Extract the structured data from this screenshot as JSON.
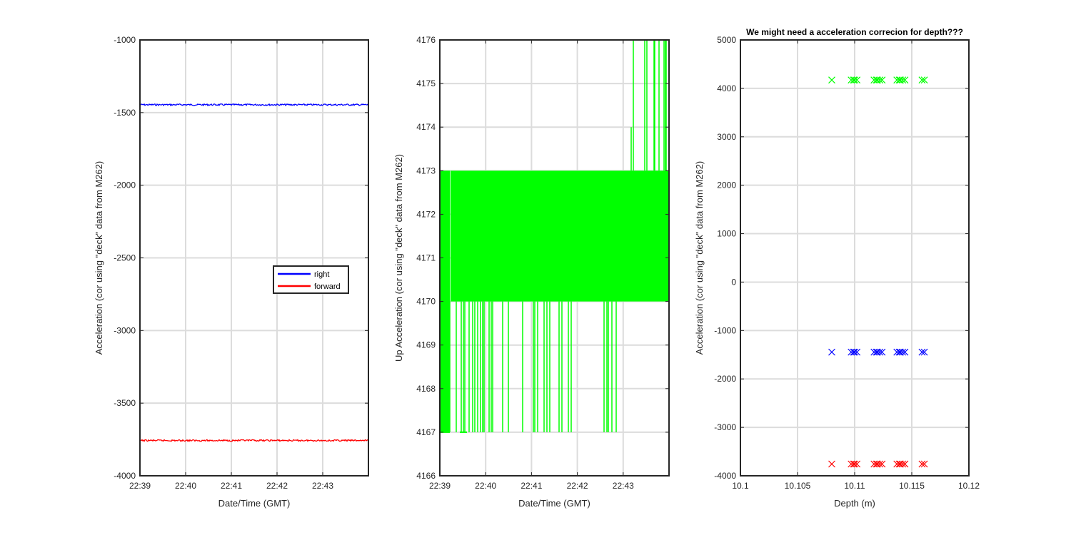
{
  "chart_data": [
    {
      "type": "line",
      "title": "",
      "xlabel": "Date/Time (GMT)",
      "ylabel": "Acceleration (cor using \"deck\" data from M262)",
      "xlim": [
        "22:39",
        "22:44"
      ],
      "x_ticks": [
        "22:39",
        "22:40",
        "22:41",
        "22:42",
        "22:43"
      ],
      "ylim": [
        -4000,
        -1000
      ],
      "y_ticks": [
        "-1000",
        "-1500",
        "-2000",
        "-2500",
        "-3000",
        "-3500",
        "-4000"
      ],
      "grid": true,
      "legend_position": "center-right",
      "series": [
        {
          "name": "right",
          "color": "#0000ff",
          "x": [
            "22:39",
            "22:44"
          ],
          "values": [
            -1446,
            -1446
          ]
        },
        {
          "name": "forward",
          "color": "#ff0000",
          "x": [
            "22:39",
            "22:44"
          ],
          "values": [
            -3757,
            -3757
          ]
        }
      ]
    },
    {
      "type": "line",
      "title": "",
      "xlabel": "Date/Time (GMT)",
      "ylabel": "Up Acceleration (cor using \"deck\" data from M262)",
      "xlim": [
        "22:39",
        "22:44"
      ],
      "x_ticks": [
        "22:39",
        "22:40",
        "22:41",
        "22:42",
        "22:43"
      ],
      "ylim": [
        4166,
        4176
      ],
      "y_ticks": [
        "4176",
        "4175",
        "4174",
        "4173",
        "4172",
        "4171",
        "4170",
        "4169",
        "4168",
        "4167",
        "4166"
      ],
      "grid": true,
      "series": [
        {
          "color": "#00ff00",
          "description_levels": [
            4167,
            4170,
            4173,
            4176
          ],
          "values_range": [
            4167,
            4176
          ]
        }
      ]
    },
    {
      "type": "scatter",
      "title": "We might need a acceleration correcion for depth???",
      "xlabel": "Depth (m)",
      "ylabel": "Acceleration (cor using \"deck\" data from M262)",
      "xlim": [
        10.1,
        10.12
      ],
      "x_ticks": [
        "10.1",
        "10.105",
        "10.11",
        "10.115",
        "10.12"
      ],
      "ylim": [
        -4000,
        5000
      ],
      "y_ticks": [
        "5000",
        "4000",
        "3000",
        "2000",
        "1000",
        "0",
        "-1000",
        "-2000",
        "-3000",
        "-4000"
      ],
      "grid": true,
      "marker": "x",
      "x": [
        10.108,
        10.1097,
        10.1099,
        10.11,
        10.1102,
        10.1117,
        10.1119,
        10.112,
        10.1122,
        10.1124,
        10.1137,
        10.1139,
        10.114,
        10.1142,
        10.1144,
        10.1159,
        10.1161
      ],
      "series": [
        {
          "color": "#00ff00",
          "value": 4173
        },
        {
          "color": "#0000ff",
          "value": -1446
        },
        {
          "color": "#ff0000",
          "value": -3757
        }
      ]
    }
  ]
}
